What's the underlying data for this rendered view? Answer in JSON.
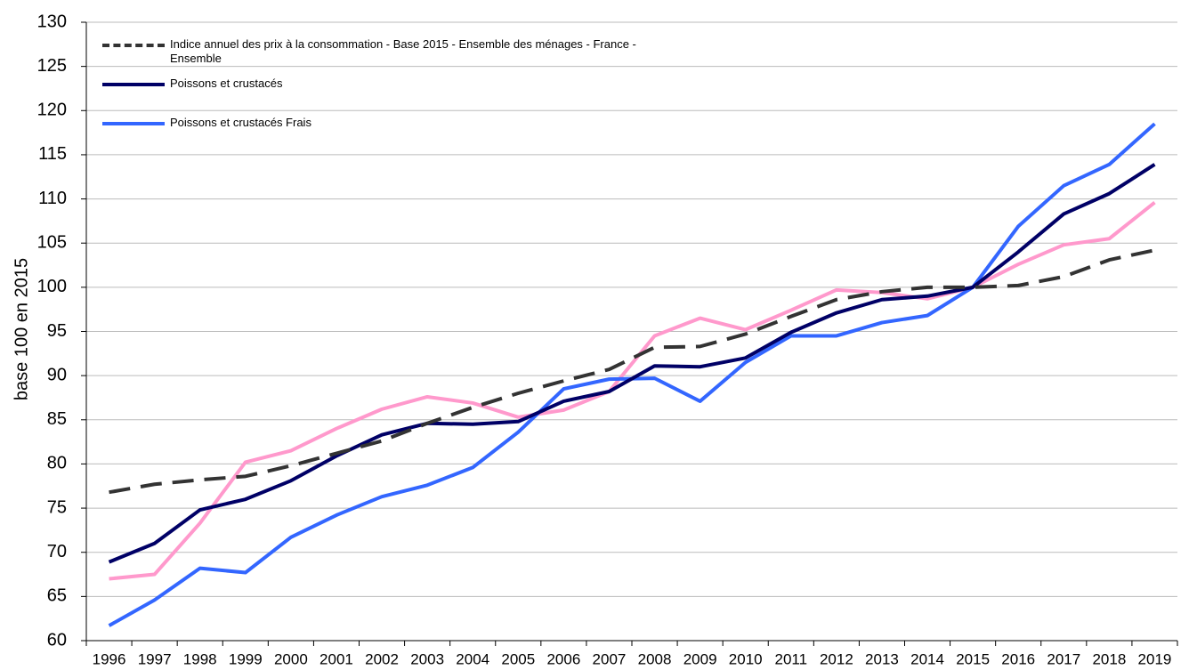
{
  "chart_data": {
    "type": "line",
    "y_label": "base 100 en 2015",
    "categories": [
      "1996",
      "1997",
      "1998",
      "1999",
      "2000",
      "2001",
      "2002",
      "2003",
      "2004",
      "2005",
      "2006",
      "2007",
      "2008",
      "2009",
      "2010",
      "2011",
      "2012",
      "2013",
      "2014",
      "2015",
      "2016",
      "2017",
      "2018",
      "2019"
    ],
    "series": [
      {
        "name": "Indice annuel des prix à la consommation - Base 2015 - Ensemble des ménages - France - Ensemble",
        "color": "#333333",
        "dashed": true,
        "values": [
          76.8,
          77.7,
          78.2,
          78.6,
          79.8,
          81.2,
          82.6,
          84.6,
          86.4,
          88,
          89.4,
          90.7,
          93.2,
          93.3,
          94.7,
          96.7,
          98.6,
          99.5,
          100,
          100,
          100.2,
          101.2,
          103.1,
          104.2
        ]
      },
      {
        "name": "Poissons et crustacés",
        "color": "#000066",
        "values": [
          68.9,
          71,
          74.8,
          76,
          78.1,
          80.9,
          83.3,
          84.6,
          84.5,
          84.8,
          87.1,
          88.2,
          91.1,
          91,
          92,
          94.9,
          97.1,
          98.6,
          99,
          100,
          104,
          108.3,
          110.6,
          113.9
        ]
      },
      {
        "name": "Poissons et crustacés Frais",
        "color": "#3366ff",
        "values": [
          61.7,
          64.6,
          68.2,
          67.7,
          71.7,
          74.2,
          76.3,
          77.6,
          79.6,
          83.6,
          88.5,
          89.6,
          89.7,
          87.1,
          91.5,
          94.5,
          94.5,
          96,
          96.8,
          100,
          106.9,
          111.5,
          113.9,
          118.5
        ]
      },
      {
        "color": "#ff99cc",
        "values": [
          67,
          67.5,
          73.3,
          80.2,
          81.5,
          84,
          86.2,
          87.6,
          86.9,
          85.3,
          86.1,
          88.2,
          94.5,
          96.5,
          95.2,
          97.4,
          99.7,
          99.4,
          98.7,
          100,
          102.6,
          104.8,
          105.5,
          109.6
        ]
      }
    ],
    "ylim": [
      60,
      130
    ],
    "yticks": [
      60,
      65,
      70,
      75,
      80,
      85,
      90,
      95,
      100,
      105,
      110,
      115,
      120,
      125,
      130
    ],
    "grid": true,
    "legend": "upper-left"
  }
}
